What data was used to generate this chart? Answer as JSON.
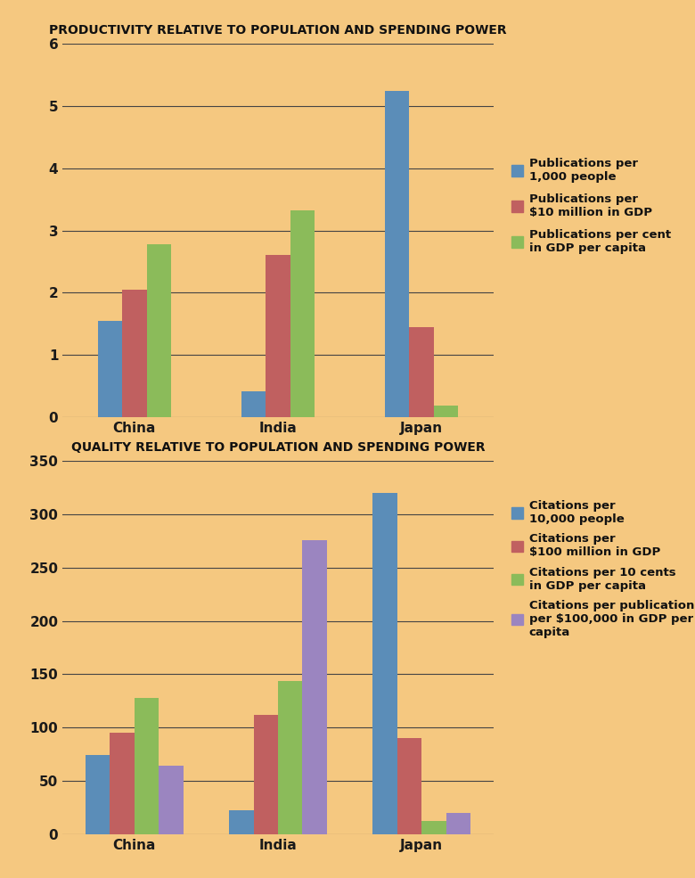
{
  "bg_color": "#F5C880",
  "top_chart": {
    "title": "PRODUCTIVITY RELATIVE TO POPULATION AND SPENDING POWER",
    "categories": [
      "China",
      "India",
      "Japan"
    ],
    "series": [
      {
        "label": "Publications per\n1,000 people",
        "color": "#5B8DB8",
        "values": [
          1.55,
          0.42,
          5.25
        ]
      },
      {
        "label": "Publications per\n$10 million in GDP",
        "color": "#C06060",
        "values": [
          2.05,
          2.6,
          1.45
        ]
      },
      {
        "label": "Publications per cent\nin GDP per capita",
        "color": "#8BBB5A",
        "values": [
          2.78,
          3.32,
          0.18
        ]
      }
    ],
    "ylim": [
      0,
      6
    ],
    "yticks": [
      0,
      1,
      2,
      3,
      4,
      5,
      6
    ]
  },
  "bottom_chart": {
    "title": "QUALITY RELATIVE TO POPULATION AND SPENDING POWER",
    "categories": [
      "China",
      "India",
      "Japan"
    ],
    "series": [
      {
        "label": "Citations per\n10,000 people",
        "color": "#5B8DB8",
        "values": [
          74,
          22,
          320
        ]
      },
      {
        "label": "Citations per\n$100 million in GDP",
        "color": "#C06060",
        "values": [
          95,
          112,
          90
        ]
      },
      {
        "label": "Citations per 10 cents\nin GDP per capita",
        "color": "#8BBB5A",
        "values": [
          128,
          144,
          12
        ]
      },
      {
        "label": "Citations per publication\nper $100,000 in GDP per\ncapita",
        "color": "#9B85C0",
        "values": [
          64,
          276,
          20
        ]
      }
    ],
    "ylim": [
      0,
      350
    ],
    "yticks": [
      0,
      50,
      100,
      150,
      200,
      250,
      300,
      350
    ]
  }
}
